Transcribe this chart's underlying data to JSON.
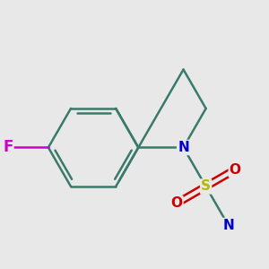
{
  "bg_color": "#e8e8e8",
  "bond_color": "#3a7a6a",
  "bond_width": 1.8,
  "atom_colors": {
    "N": "#0000cc",
    "S": "#b8b800",
    "O": "#cc0000",
    "F": "#cc00cc",
    "C": "#3a7a6a"
  },
  "font_size": 11,
  "fig_size": [
    3.0,
    3.0
  ],
  "dpi": 100,
  "scale": 0.52
}
